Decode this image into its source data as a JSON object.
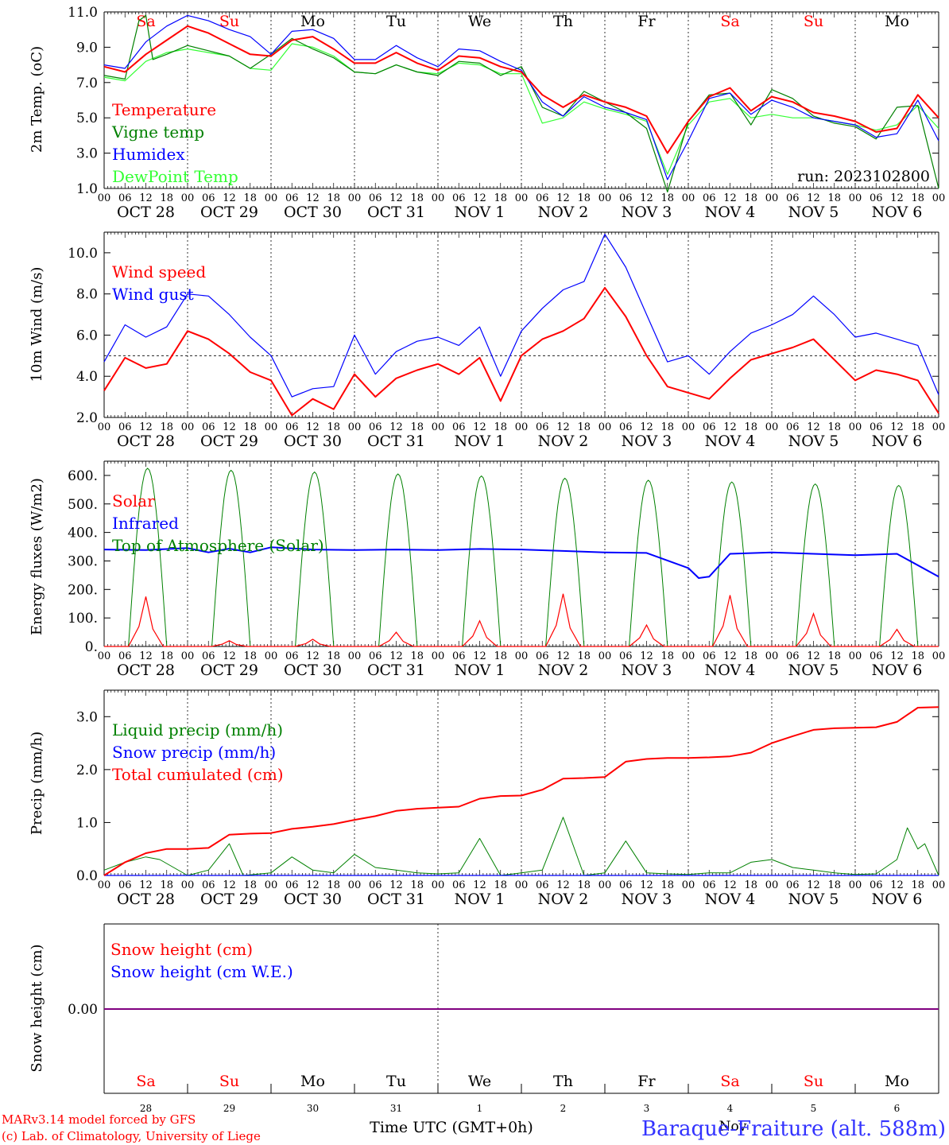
{
  "chart_data": [
    {
      "type": "line",
      "ylabel": "2m Temp. (oC)",
      "ylim": [
        1.0,
        11.0
      ],
      "yticks": [
        "1.0",
        "3.0",
        "5.0",
        "7.0",
        "9.0",
        "11.0"
      ],
      "day_labels": [
        "Sa",
        "Su",
        "Mo",
        "Tu",
        "We",
        "Th",
        "Fr",
        "Sa",
        "Su",
        "Mo"
      ],
      "date_labels": [
        "OCT 28",
        "OCT 29",
        "OCT 30",
        "OCT 31",
        "NOV  1",
        "NOV  2",
        "NOV  3",
        "NOV  4",
        "NOV  5",
        "NOV  6"
      ],
      "hour_labels": [
        "00",
        "06",
        "12",
        "18"
      ],
      "run_label": "run: 2023102800",
      "x_unit": "hours since OCT 28 00 UTC",
      "series": [
        {
          "name": "Temperature",
          "color": "#ff0000",
          "x": [
            0,
            6,
            12,
            18,
            24,
            30,
            36,
            42,
            48,
            54,
            60,
            66,
            72,
            78,
            84,
            90,
            96,
            102,
            108,
            114,
            120,
            126,
            132,
            138,
            144,
            150,
            156,
            162,
            168,
            174,
            180,
            186,
            192,
            198,
            204,
            210,
            216,
            222,
            228,
            234,
            240
          ],
          "y": [
            7.9,
            7.6,
            8.6,
            9.4,
            10.2,
            9.8,
            9.2,
            8.6,
            8.5,
            9.4,
            9.6,
            8.9,
            8.1,
            8.1,
            8.7,
            8.1,
            7.7,
            8.5,
            8.4,
            7.9,
            7.6,
            6.3,
            5.6,
            6.3,
            5.9,
            5.6,
            5.1,
            3.0,
            4.8,
            6.2,
            6.7,
            5.4,
            6.2,
            5.9,
            5.3,
            5.1,
            4.8,
            4.2,
            4.4,
            6.3,
            5.0
          ]
        },
        {
          "name": "Vigne temp",
          "color": "#008000",
          "x": [
            0,
            6,
            10,
            12,
            14,
            18,
            24,
            30,
            36,
            42,
            48,
            54,
            60,
            66,
            72,
            78,
            84,
            90,
            96,
            102,
            108,
            114,
            120,
            126,
            132,
            138,
            144,
            150,
            156,
            162,
            168,
            174,
            180,
            186,
            192,
            198,
            204,
            210,
            216,
            222,
            228,
            234,
            240
          ],
          "y": [
            7.4,
            7.2,
            10.5,
            10.8,
            8.3,
            8.6,
            9.1,
            8.8,
            8.5,
            7.8,
            8.6,
            9.5,
            8.9,
            8.4,
            7.6,
            7.5,
            8.0,
            7.6,
            7.4,
            8.2,
            8.1,
            7.4,
            7.9,
            5.6,
            5.1,
            6.5,
            5.9,
            5.3,
            4.4,
            0.8,
            4.8,
            6.3,
            6.4,
            4.6,
            6.6,
            6.1,
            5.1,
            4.7,
            4.5,
            3.8,
            5.6,
            5.7,
            1.0
          ]
        },
        {
          "name": "Humidex",
          "color": "#0000ff",
          "x": [
            0,
            6,
            12,
            18,
            24,
            30,
            36,
            42,
            48,
            54,
            60,
            66,
            72,
            78,
            84,
            90,
            96,
            102,
            108,
            114,
            120,
            126,
            132,
            138,
            144,
            150,
            156,
            162,
            168,
            174,
            180,
            186,
            192,
            198,
            204,
            210,
            216,
            222,
            228,
            234,
            240
          ],
          "y": [
            8.0,
            7.8,
            9.3,
            10.2,
            10.8,
            10.5,
            10.0,
            9.6,
            8.6,
            9.9,
            10.0,
            9.5,
            8.3,
            8.3,
            9.1,
            8.4,
            7.9,
            8.9,
            8.8,
            8.2,
            7.7,
            5.9,
            5.1,
            6.2,
            5.6,
            5.3,
            4.9,
            1.5,
            3.7,
            6.1,
            6.4,
            5.2,
            6.0,
            5.6,
            5.0,
            4.8,
            4.6,
            3.9,
            4.1,
            6.0,
            3.7
          ]
        },
        {
          "name": "DewPoint Temp",
          "color": "#33ff33",
          "x": [
            0,
            6,
            12,
            18,
            24,
            30,
            36,
            42,
            48,
            54,
            60,
            66,
            72,
            78,
            84,
            90,
            96,
            102,
            108,
            114,
            120,
            126,
            132,
            138,
            144,
            150,
            156,
            162,
            168,
            174,
            180,
            186,
            192,
            198,
            204,
            210,
            216,
            222,
            228,
            234,
            240
          ],
          "y": [
            7.3,
            7.1,
            8.2,
            8.7,
            8.9,
            8.7,
            8.5,
            7.8,
            7.7,
            9.2,
            9.0,
            8.5,
            7.6,
            7.5,
            8.0,
            7.6,
            7.5,
            8.1,
            8.0,
            7.5,
            7.5,
            4.7,
            5.0,
            5.9,
            5.5,
            5.2,
            4.8,
            1.8,
            4.6,
            5.9,
            6.1,
            5.0,
            5.2,
            5.0,
            5.0,
            4.8,
            4.6,
            4.3,
            4.6,
            5.7,
            4.4
          ]
        }
      ]
    },
    {
      "type": "line",
      "ylabel": "10m Wind (m/s)",
      "ylim": [
        2.0,
        11.0
      ],
      "yticks": [
        "2.0",
        "4.0",
        "6.0",
        "8.0",
        "10.0"
      ],
      "date_labels": [
        "OCT 28",
        "OCT 29",
        "OCT 30",
        "OCT 31",
        "NOV  1",
        "NOV  2",
        "NOV  3",
        "NOV  4",
        "NOV  5",
        "NOV  6"
      ],
      "hour_labels": [
        "00",
        "06",
        "12",
        "18"
      ],
      "reference_line": 5.0,
      "series": [
        {
          "name": "Wind speed",
          "color": "#ff0000",
          "x": [
            0,
            6,
            12,
            18,
            24,
            30,
            36,
            42,
            48,
            54,
            60,
            66,
            72,
            78,
            84,
            90,
            96,
            102,
            108,
            114,
            120,
            126,
            132,
            138,
            144,
            150,
            156,
            162,
            168,
            174,
            180,
            186,
            192,
            198,
            204,
            210,
            216,
            222,
            228,
            234,
            240
          ],
          "y": [
            3.3,
            4.9,
            4.4,
            4.6,
            6.2,
            5.8,
            5.1,
            4.2,
            3.8,
            2.1,
            2.9,
            2.4,
            4.1,
            3.0,
            3.9,
            4.3,
            4.6,
            4.1,
            4.9,
            2.8,
            5.0,
            5.8,
            6.2,
            6.8,
            8.3,
            6.9,
            5.0,
            3.5,
            3.2,
            2.9,
            3.9,
            4.8,
            5.1,
            5.4,
            5.8,
            4.8,
            3.8,
            4.3,
            4.1,
            3.8,
            2.2
          ]
        },
        {
          "name": "Wind gust",
          "color": "#0000ff",
          "x": [
            0,
            6,
            12,
            18,
            24,
            30,
            36,
            42,
            48,
            54,
            60,
            66,
            72,
            78,
            84,
            90,
            96,
            102,
            108,
            114,
            120,
            126,
            132,
            138,
            144,
            150,
            156,
            162,
            168,
            174,
            180,
            186,
            192,
            198,
            204,
            210,
            216,
            222,
            228,
            234,
            240
          ],
          "y": [
            4.7,
            6.5,
            5.9,
            6.4,
            8.0,
            7.9,
            7.0,
            5.9,
            5.0,
            3.0,
            3.4,
            3.5,
            6.0,
            4.1,
            5.2,
            5.7,
            5.9,
            5.5,
            6.4,
            4.0,
            6.2,
            7.3,
            8.2,
            8.6,
            10.9,
            9.3,
            7.0,
            4.7,
            5.0,
            4.1,
            5.2,
            6.1,
            6.5,
            7.0,
            7.9,
            7.0,
            5.9,
            6.1,
            5.8,
            5.5,
            3.1
          ]
        }
      ]
    },
    {
      "type": "line",
      "ylabel": "Energy fluxes (W/m2)",
      "ylim": [
        0,
        650
      ],
      "yticks": [
        "0.",
        "100.",
        "200.",
        "300.",
        "400.",
        "500.",
        "600."
      ],
      "date_labels": [
        "OCT 28",
        "OCT 29",
        "OCT 30",
        "OCT 31",
        "NOV  1",
        "NOV  2",
        "NOV  3",
        "NOV  4",
        "NOV  5",
        "NOV  6"
      ],
      "hour_labels": [
        "00",
        "06",
        "12",
        "18"
      ],
      "series": [
        {
          "name": "Solar",
          "color": "#ff0000",
          "peaks": [
            175,
            20,
            25,
            50,
            90,
            185,
            75,
            180,
            115,
            60
          ]
        },
        {
          "name": "Infrared",
          "color": "#0000ff",
          "x": [
            0,
            12,
            24,
            30,
            36,
            42,
            48,
            60,
            72,
            84,
            96,
            108,
            120,
            132,
            144,
            156,
            168,
            171,
            174,
            180,
            192,
            204,
            216,
            228,
            240
          ],
          "y": [
            340,
            338,
            345,
            330,
            343,
            330,
            348,
            340,
            338,
            340,
            338,
            342,
            340,
            335,
            330,
            328,
            275,
            240,
            245,
            325,
            330,
            325,
            320,
            325,
            245
          ]
        },
        {
          "name": "Top of Atmosphere (Solar)",
          "color": "#008000",
          "peaks": [
            625,
            618,
            612,
            605,
            598,
            590,
            583,
            577,
            570,
            565
          ]
        }
      ]
    },
    {
      "type": "line",
      "ylabel": "Precip (mm/h)",
      "ylim": [
        0,
        3.5
      ],
      "yticks": [
        "0.0",
        "1.0",
        "2.0",
        "3.0"
      ],
      "date_labels": [
        "OCT 28",
        "OCT 29",
        "OCT 30",
        "OCT 31",
        "NOV  1",
        "NOV  2",
        "NOV  3",
        "NOV  4",
        "NOV  5",
        "NOV  6"
      ],
      "hour_labels": [
        "00",
        "06",
        "12",
        "18"
      ],
      "series": [
        {
          "name": "Liquid precip (mm/h)",
          "color": "#008000",
          "x": [
            0,
            6,
            12,
            16,
            24,
            30,
            36,
            40,
            48,
            54,
            60,
            66,
            72,
            78,
            84,
            90,
            96,
            102,
            108,
            114,
            120,
            126,
            132,
            138,
            144,
            150,
            156,
            162,
            168,
            174,
            180,
            186,
            192,
            198,
            204,
            210,
            216,
            222,
            228,
            231,
            234,
            236,
            240
          ],
          "y": [
            0.1,
            0.25,
            0.35,
            0.3,
            0.0,
            0.1,
            0.6,
            0.0,
            0.05,
            0.35,
            0.1,
            0.05,
            0.4,
            0.15,
            0.1,
            0.05,
            0.03,
            0.05,
            0.7,
            0.0,
            0.05,
            0.1,
            1.1,
            0.0,
            0.05,
            0.65,
            0.05,
            0.03,
            0.02,
            0.05,
            0.05,
            0.25,
            0.3,
            0.15,
            0.1,
            0.05,
            0.02,
            0.03,
            0.3,
            0.9,
            0.5,
            0.6,
            0.0
          ]
        },
        {
          "name": "Snow precip (mm/h)",
          "color": "#0000ff",
          "x": [
            0,
            240
          ],
          "y": [
            0,
            0
          ]
        },
        {
          "name": "Total cumulated (cm)",
          "color": "#ff0000",
          "x": [
            0,
            6,
            12,
            18,
            24,
            30,
            36,
            42,
            48,
            54,
            60,
            66,
            72,
            78,
            84,
            90,
            96,
            102,
            108,
            114,
            120,
            126,
            132,
            138,
            144,
            150,
            156,
            162,
            168,
            174,
            180,
            186,
            192,
            198,
            204,
            210,
            216,
            222,
            228,
            234,
            240
          ],
          "y": [
            0,
            0.25,
            0.42,
            0.5,
            0.5,
            0.52,
            0.77,
            0.79,
            0.8,
            0.88,
            0.92,
            0.97,
            1.05,
            1.12,
            1.22,
            1.26,
            1.28,
            1.3,
            1.45,
            1.5,
            1.51,
            1.62,
            1.83,
            1.84,
            1.86,
            2.15,
            2.2,
            2.22,
            2.22,
            2.23,
            2.25,
            2.32,
            2.5,
            2.63,
            2.75,
            2.78,
            2.79,
            2.8,
            2.9,
            3.17,
            3.18
          ]
        }
      ]
    },
    {
      "type": "line",
      "ylabel": "Snow height (cm)",
      "yticks": [
        "0.00"
      ],
      "day_labels": [
        "Sa",
        "Su",
        "Mo",
        "Tu",
        "We",
        "Th",
        "Fr",
        "Sa",
        "Su",
        "Mo"
      ],
      "day_numbers": [
        "28",
        "29",
        "30",
        "31",
        "1",
        "2",
        "3",
        "4",
        "5",
        "6"
      ],
      "xlabel": "Time UTC (GMT+0h)",
      "month_label": "Nov",
      "series": [
        {
          "name": "Snow height (cm)",
          "color": "#ff0000",
          "x": [
            0,
            240
          ],
          "y": [
            0,
            0
          ]
        },
        {
          "name": "Snow height (cm W.E.)",
          "color": "#0000ff",
          "x": [
            0,
            240
          ],
          "y": [
            0,
            0
          ]
        }
      ]
    }
  ],
  "footer": {
    "credit_line1": "MARv3.14 model forced by GFS",
    "credit_line2": "(c) Lab. of Climatology, University of Liege",
    "station": "Baraque-Fraiture (alt. 588m)"
  },
  "colors": {
    "red": "#ff0000",
    "green": "#008000",
    "blue": "#0000ff",
    "lightgreen": "#33ff33",
    "purple": "#800080",
    "weekend_day": "#ff0000"
  }
}
